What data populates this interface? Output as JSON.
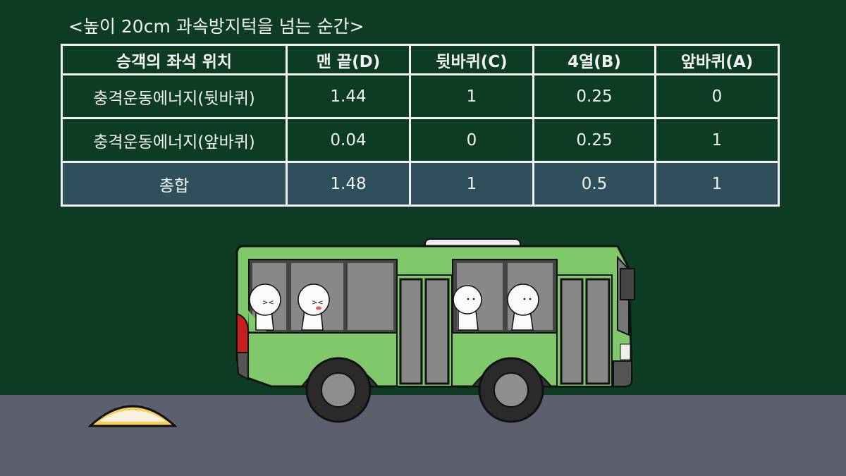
{
  "title": "<높이 20cm 과속방지턱을 넘는 순간>",
  "table": {
    "headers": [
      "승객의 좌석 위치",
      "맨 끝(D)",
      "뒷바퀴(C)",
      "4열(B)",
      "앞바퀴(A)"
    ],
    "rows": [
      [
        "충격운동에너지(뒷바퀴)",
        "1.44",
        "1",
        "0.25",
        "0"
      ],
      [
        "충격운동에너지(앞바퀴)",
        "0.04",
        "0",
        "0.25",
        "1"
      ],
      [
        "총합",
        "1.48",
        "1",
        "0.5",
        "1"
      ]
    ]
  },
  "colors": {
    "background": "#0d3b23",
    "total_row": "#2e4f5b",
    "bus": "#80c96a",
    "road": "#5c5f6e",
    "speed_bump": "#f5cf5a"
  }
}
